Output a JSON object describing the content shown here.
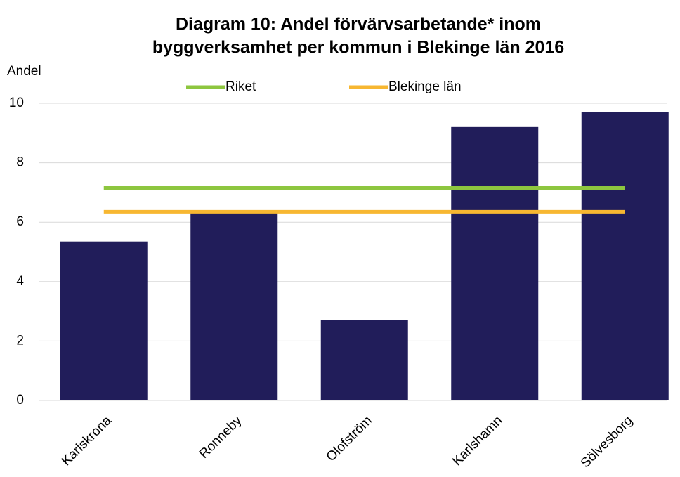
{
  "chart_data": {
    "type": "bar",
    "title": [
      "Diagram 10: Andel förvärvsarbetande* inom",
      "byggverksamhet per kommun i Blekinge län 2016"
    ],
    "ylabel": "Andel",
    "categories": [
      "Karlskrona",
      "Ronneby",
      "Olofström",
      "Karlshamn",
      "Sölvesborg"
    ],
    "values": [
      5.35,
      6.4,
      2.7,
      9.2,
      9.7
    ],
    "color": "#211d5a",
    "lines": [
      {
        "name": "Riket",
        "color": "#8dc63f",
        "values": [
          7.15,
          7.15,
          7.15,
          7.15,
          7.15
        ]
      },
      {
        "name": "Blekinge län",
        "color": "#f7b731",
        "values": [
          6.35,
          6.35,
          6.35,
          6.35,
          6.35
        ]
      }
    ],
    "ylim": [
      0,
      10
    ],
    "yticks": [
      0,
      2,
      4,
      6,
      8,
      10
    ],
    "grid": true,
    "legend": "top"
  }
}
